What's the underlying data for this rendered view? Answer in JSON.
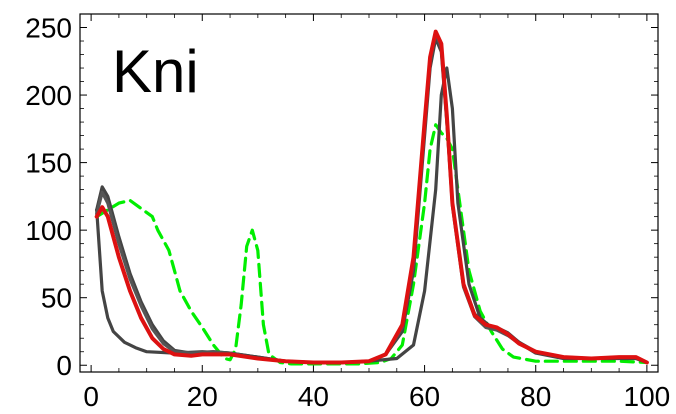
{
  "chart_data": {
    "type": "line",
    "title": "",
    "panel_label": "Kni",
    "xlabel": "",
    "ylabel": "",
    "xlim": [
      -2,
      102
    ],
    "ylim": [
      -5,
      260
    ],
    "x_ticks": [
      0,
      20,
      40,
      60,
      80,
      100
    ],
    "y_ticks": [
      0,
      50,
      100,
      150,
      200,
      250
    ],
    "grid": false,
    "series": [
      {
        "color": "#00ee00",
        "dash": "dashed",
        "points": [
          [
            1,
            110
          ],
          [
            3,
            115
          ],
          [
            5,
            120
          ],
          [
            7,
            122
          ],
          [
            9,
            116
          ],
          [
            11,
            110
          ],
          [
            12,
            100
          ],
          [
            14,
            85
          ],
          [
            15,
            70
          ],
          [
            16,
            55
          ],
          [
            18,
            40
          ],
          [
            20,
            28
          ],
          [
            22,
            15
          ],
          [
            24,
            5
          ],
          [
            25,
            4
          ],
          [
            26,
            12
          ],
          [
            27,
            45
          ],
          [
            28,
            88
          ],
          [
            29,
            100
          ],
          [
            30,
            85
          ],
          [
            31,
            30
          ],
          [
            32,
            8
          ],
          [
            34,
            2
          ],
          [
            36,
            1
          ],
          [
            40,
            1
          ],
          [
            44,
            1
          ],
          [
            48,
            1
          ],
          [
            52,
            2
          ],
          [
            54,
            5
          ],
          [
            56,
            15
          ],
          [
            58,
            60
          ],
          [
            60,
            120
          ],
          [
            61,
            160
          ],
          [
            62,
            178
          ],
          [
            63,
            172
          ],
          [
            64,
            168
          ],
          [
            65,
            160
          ],
          [
            66,
            130
          ],
          [
            68,
            70
          ],
          [
            70,
            40
          ],
          [
            72,
            25
          ],
          [
            74,
            12
          ],
          [
            76,
            6
          ],
          [
            80,
            3
          ],
          [
            85,
            3
          ],
          [
            90,
            3
          ],
          [
            95,
            3
          ],
          [
            100,
            2
          ]
        ]
      },
      {
        "color": "#444444",
        "dash": "solid",
        "points": [
          [
            1,
            115
          ],
          [
            2,
            55
          ],
          [
            3,
            35
          ],
          [
            4,
            25
          ],
          [
            6,
            17
          ],
          [
            8,
            13
          ],
          [
            10,
            10
          ],
          [
            15,
            9
          ],
          [
            20,
            10
          ],
          [
            25,
            9
          ],
          [
            30,
            6
          ],
          [
            35,
            3
          ],
          [
            40,
            2
          ],
          [
            45,
            2
          ],
          [
            50,
            3
          ],
          [
            55,
            5
          ],
          [
            58,
            15
          ],
          [
            60,
            55
          ],
          [
            62,
            130
          ],
          [
            63,
            200
          ],
          [
            64,
            220
          ],
          [
            65,
            190
          ],
          [
            66,
            120
          ],
          [
            68,
            60
          ],
          [
            70,
            35
          ],
          [
            72,
            28
          ],
          [
            74,
            25
          ],
          [
            76,
            20
          ],
          [
            78,
            14
          ],
          [
            80,
            9
          ],
          [
            85,
            5
          ],
          [
            90,
            5
          ],
          [
            95,
            5
          ],
          [
            98,
            5
          ],
          [
            100,
            2
          ]
        ]
      },
      {
        "color": "#444444",
        "dash": "solid",
        "points": [
          [
            1,
            115
          ],
          [
            2,
            132
          ],
          [
            3,
            125
          ],
          [
            5,
            95
          ],
          [
            7,
            68
          ],
          [
            9,
            47
          ],
          [
            11,
            30
          ],
          [
            13,
            18
          ],
          [
            15,
            11
          ],
          [
            18,
            9
          ],
          [
            22,
            10
          ],
          [
            25,
            9
          ],
          [
            30,
            6
          ],
          [
            35,
            3
          ],
          [
            40,
            2
          ],
          [
            45,
            2
          ],
          [
            50,
            3
          ],
          [
            53,
            8
          ],
          [
            56,
            25
          ],
          [
            58,
            70
          ],
          [
            60,
            170
          ],
          [
            61,
            220
          ],
          [
            62,
            242
          ],
          [
            63,
            232
          ],
          [
            64,
            180
          ],
          [
            65,
            120
          ],
          [
            67,
            60
          ],
          [
            69,
            38
          ],
          [
            71,
            30
          ],
          [
            73,
            28
          ],
          [
            75,
            24
          ],
          [
            77,
            17
          ],
          [
            80,
            10
          ],
          [
            85,
            6
          ],
          [
            90,
            5
          ],
          [
            95,
            6
          ],
          [
            98,
            6
          ],
          [
            100,
            2
          ]
        ]
      },
      {
        "color": "#555555",
        "dash": "solid",
        "points": [
          [
            1,
            112
          ],
          [
            2,
            128
          ],
          [
            3,
            120
          ],
          [
            5,
            90
          ],
          [
            7,
            64
          ],
          [
            9,
            44
          ],
          [
            11,
            27
          ],
          [
            13,
            16
          ],
          [
            15,
            10
          ],
          [
            18,
            9
          ],
          [
            22,
            10
          ],
          [
            25,
            9
          ],
          [
            30,
            5
          ],
          [
            35,
            3
          ],
          [
            40,
            2
          ],
          [
            45,
            2
          ],
          [
            50,
            3
          ],
          [
            53,
            8
          ],
          [
            56,
            28
          ],
          [
            58,
            75
          ],
          [
            60,
            175
          ],
          [
            61,
            225
          ],
          [
            62,
            246
          ],
          [
            63,
            235
          ],
          [
            64,
            182
          ],
          [
            65,
            118
          ],
          [
            67,
            58
          ],
          [
            69,
            36
          ],
          [
            71,
            28
          ],
          [
            73,
            26
          ],
          [
            75,
            22
          ],
          [
            77,
            16
          ],
          [
            80,
            10
          ],
          [
            85,
            6
          ],
          [
            90,
            5
          ],
          [
            95,
            6
          ],
          [
            98,
            6
          ],
          [
            100,
            2
          ]
        ]
      },
      {
        "color": "#dd1111",
        "dash": "solid",
        "points": [
          [
            1,
            110
          ],
          [
            2,
            117
          ],
          [
            3,
            110
          ],
          [
            5,
            80
          ],
          [
            7,
            55
          ],
          [
            9,
            35
          ],
          [
            11,
            20
          ],
          [
            13,
            12
          ],
          [
            15,
            8
          ],
          [
            18,
            7
          ],
          [
            20,
            8
          ],
          [
            25,
            8
          ],
          [
            30,
            5
          ],
          [
            35,
            3
          ],
          [
            40,
            2
          ],
          [
            45,
            2
          ],
          [
            50,
            3
          ],
          [
            53,
            8
          ],
          [
            56,
            30
          ],
          [
            58,
            80
          ],
          [
            60,
            180
          ],
          [
            61,
            228
          ],
          [
            62,
            247
          ],
          [
            63,
            238
          ],
          [
            64,
            185
          ],
          [
            65,
            120
          ],
          [
            67,
            60
          ],
          [
            69,
            37
          ],
          [
            71,
            30
          ],
          [
            73,
            28
          ],
          [
            75,
            23
          ],
          [
            77,
            16
          ],
          [
            80,
            10
          ],
          [
            85,
            6
          ],
          [
            90,
            5
          ],
          [
            95,
            6
          ],
          [
            98,
            6
          ],
          [
            100,
            2
          ]
        ]
      }
    ]
  }
}
